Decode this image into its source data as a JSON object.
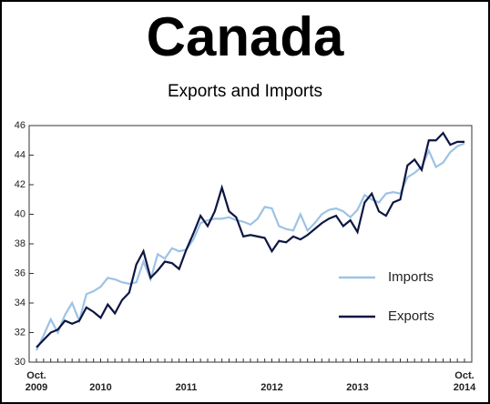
{
  "chart_data": {
    "type": "line",
    "title": "Canada",
    "subtitle": "Exports and Imports",
    "categories": [
      "Oct.\n2009",
      null,
      null,
      null,
      null,
      null,
      null,
      null,
      null,
      "2010",
      null,
      null,
      null,
      null,
      null,
      null,
      null,
      null,
      null,
      null,
      null,
      "2011",
      null,
      null,
      null,
      null,
      null,
      null,
      null,
      null,
      null,
      null,
      null,
      "2012",
      null,
      null,
      null,
      null,
      null,
      null,
      null,
      null,
      null,
      null,
      null,
      "2013",
      null,
      null,
      null,
      null,
      null,
      null,
      null,
      null,
      null,
      null,
      null,
      null,
      null,
      null,
      "Oct.\n2014"
    ],
    "series": [
      {
        "name": "Imports",
        "color": "#9dc3e6",
        "values": [
          30.8,
          31.8,
          32.9,
          32.0,
          33.2,
          34.0,
          32.8,
          34.6,
          34.8,
          35.1,
          35.7,
          35.6,
          35.4,
          35.3,
          35.4,
          36.8,
          35.6,
          37.3,
          37.0,
          37.7,
          37.5,
          37.6,
          38.3,
          39.4,
          39.6,
          39.7,
          39.7,
          39.8,
          39.6,
          39.5,
          39.3,
          39.7,
          40.5,
          40.4,
          39.2,
          39.0,
          38.9,
          40.0,
          38.9,
          39.4,
          40.0,
          40.3,
          40.4,
          40.2,
          39.8,
          40.3,
          41.3,
          41.0,
          40.8,
          41.4,
          41.5,
          41.4,
          42.5,
          42.8,
          43.2,
          44.3,
          43.2,
          43.5,
          44.2,
          44.6,
          44.8
        ]
      },
      {
        "name": "Exports",
        "color": "#0d1642",
        "values": [
          31.0,
          31.5,
          32.0,
          32.2,
          32.8,
          32.6,
          32.8,
          33.7,
          33.4,
          33.0,
          33.9,
          33.3,
          34.2,
          34.7,
          36.6,
          37.5,
          35.7,
          36.2,
          36.8,
          36.7,
          36.3,
          37.6,
          38.7,
          39.9,
          39.2,
          40.2,
          41.8,
          40.2,
          39.8,
          38.5,
          38.6,
          38.5,
          38.4,
          37.5,
          38.2,
          38.1,
          38.5,
          38.3,
          38.6,
          39.0,
          39.4,
          39.7,
          39.9,
          39.2,
          39.6,
          38.8,
          40.8,
          41.4,
          40.2,
          39.9,
          40.8,
          41.0,
          43.3,
          43.7,
          43.0,
          45.0,
          45.0,
          45.5,
          44.7,
          44.9,
          44.9
        ]
      }
    ],
    "ylim": [
      30,
      46
    ],
    "yticks": [
      30,
      32,
      34,
      36,
      38,
      40,
      42,
      44,
      46
    ],
    "grid": false,
    "legend": "lower right"
  }
}
